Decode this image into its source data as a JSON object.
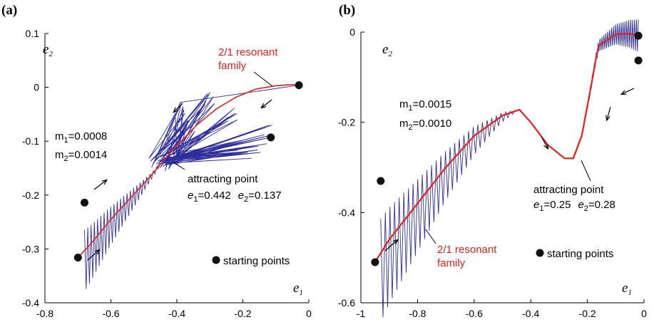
{
  "chart_data": [
    {
      "type": "line",
      "panel_label": "(a)",
      "xlabel": "e",
      "xlabel_sub": "1",
      "ylabel": "e",
      "ylabel_sub": "2",
      "xlim": [
        -0.8,
        0
      ],
      "ylim": [
        -0.4,
        0.1
      ],
      "x_ticks": [
        "-0.8",
        "-0.6",
        "-0.4",
        "-0.2",
        "0"
      ],
      "y_ticks": [
        "0.1",
        "0",
        "-0.1",
        "-0.2",
        "-0.3",
        "-0.4"
      ],
      "colors": {
        "family": "#e0221b",
        "trajectory": "#2e2e9e",
        "points": "#111111"
      },
      "resonant_family": {
        "label_line1": "2/1 resonant",
        "label_line2": "family",
        "x": [
          -0.7,
          -0.66,
          -0.6,
          -0.54,
          -0.48,
          -0.442,
          -0.4,
          -0.34,
          -0.28,
          -0.22,
          -0.16,
          -0.1,
          -0.05,
          -0.03
        ],
        "y": [
          -0.316,
          -0.29,
          -0.245,
          -0.205,
          -0.165,
          -0.137,
          -0.108,
          -0.07,
          -0.04,
          -0.018,
          -0.003,
          0.003,
          0.005,
          0.004
        ]
      },
      "trajectory_lower": {
        "start": [
          -0.68,
          -0.214
        ],
        "end": [
          -0.442,
          -0.137
        ],
        "amp_start": 0.085,
        "cycles": 24
      },
      "trajectory_upper": {
        "start": [
          -0.03,
          0.004
        ],
        "end": [
          -0.442,
          -0.137
        ],
        "fan": [
          [
            -0.39,
            -0.04
          ],
          [
            -0.36,
            -0.07
          ],
          [
            -0.3,
            -0.02
          ],
          [
            -0.23,
            -0.05
          ],
          [
            -0.2,
            -0.11
          ],
          [
            -0.16,
            -0.12
          ],
          [
            -0.12,
            -0.08
          ],
          [
            -0.13,
            -0.11
          ]
        ],
        "rays": 46
      },
      "starting_points": [
        [
          -0.7,
          -0.316
        ],
        [
          -0.68,
          -0.214
        ],
        [
          -0.115,
          -0.093
        ],
        [
          -0.03,
          0.004
        ]
      ],
      "masses": {
        "m1_label": "m",
        "m1_sub": "1",
        "m1_value": "=0.0008",
        "m2_label": "m",
        "m2_sub": "2",
        "m2_value": "=0.0014"
      },
      "attracting_point": {
        "title": "attracting point",
        "e1_label": "e",
        "e1_sub": "1",
        "e1_value": "=0.442",
        "e2_label": "e",
        "e2_sub": "2",
        "e2_value": "=0.137"
      },
      "legend": {
        "label": "starting points"
      }
    },
    {
      "type": "line",
      "panel_label": "(b)",
      "xlabel": "e",
      "xlabel_sub": "1",
      "ylabel": "e",
      "ylabel_sub": "2",
      "xlim": [
        -1,
        0
      ],
      "ylim": [
        -0.6,
        0
      ],
      "x_ticks": [
        "-1",
        "-0.8",
        "-0.6",
        "-0.4",
        "-0.2",
        "0"
      ],
      "y_ticks": [
        "0",
        "-0.2",
        "-0.4",
        "-0.6"
      ],
      "colors": {
        "family": "#e0221b",
        "trajectory": "#2e2e9e",
        "points": "#111111"
      },
      "resonant_family": {
        "label_line1": "2/1 resonant",
        "label_line2": "family",
        "x": [
          -0.95,
          -0.9,
          -0.8,
          -0.7,
          -0.6,
          -0.5,
          -0.44,
          -0.4,
          -0.34,
          -0.28,
          -0.25,
          -0.22,
          -0.19,
          -0.17,
          -0.16,
          -0.1,
          -0.05,
          -0.02
        ],
        "y": [
          -0.51,
          -0.46,
          -0.38,
          -0.3,
          -0.23,
          -0.185,
          -0.172,
          -0.2,
          -0.25,
          -0.28,
          -0.28,
          -0.23,
          -0.13,
          -0.06,
          -0.03,
          -0.005,
          -0.004,
          -0.008
        ]
      },
      "trajectory_lower": {
        "start": [
          -0.93,
          -0.33
        ],
        "end": [
          -0.44,
          -0.172
        ],
        "amp_start": 0.17,
        "cycles": 30
      },
      "trajectory_upper": {
        "start": [
          -0.02,
          -0.063
        ],
        "end": [
          -0.25,
          -0.28
        ],
        "amp_start": 0.06,
        "cycles": 34
      },
      "starting_points": [
        [
          -0.95,
          -0.51
        ],
        [
          -0.93,
          -0.33
        ],
        [
          -0.02,
          -0.063
        ],
        [
          -0.02,
          -0.008
        ]
      ],
      "masses": {
        "m1_label": "m",
        "m1_sub": "1",
        "m1_value": "=0.0015",
        "m2_label": "m",
        "m2_sub": "2",
        "m2_value": "=0.0010"
      },
      "attracting_point": {
        "title": "attracting point",
        "e1_label": "e",
        "e1_sub": "1",
        "e1_value": "=0.25",
        "e2_label": "e",
        "e2_sub": "2",
        "e2_value": "=0.28"
      },
      "legend": {
        "label": "starting points"
      }
    }
  ]
}
